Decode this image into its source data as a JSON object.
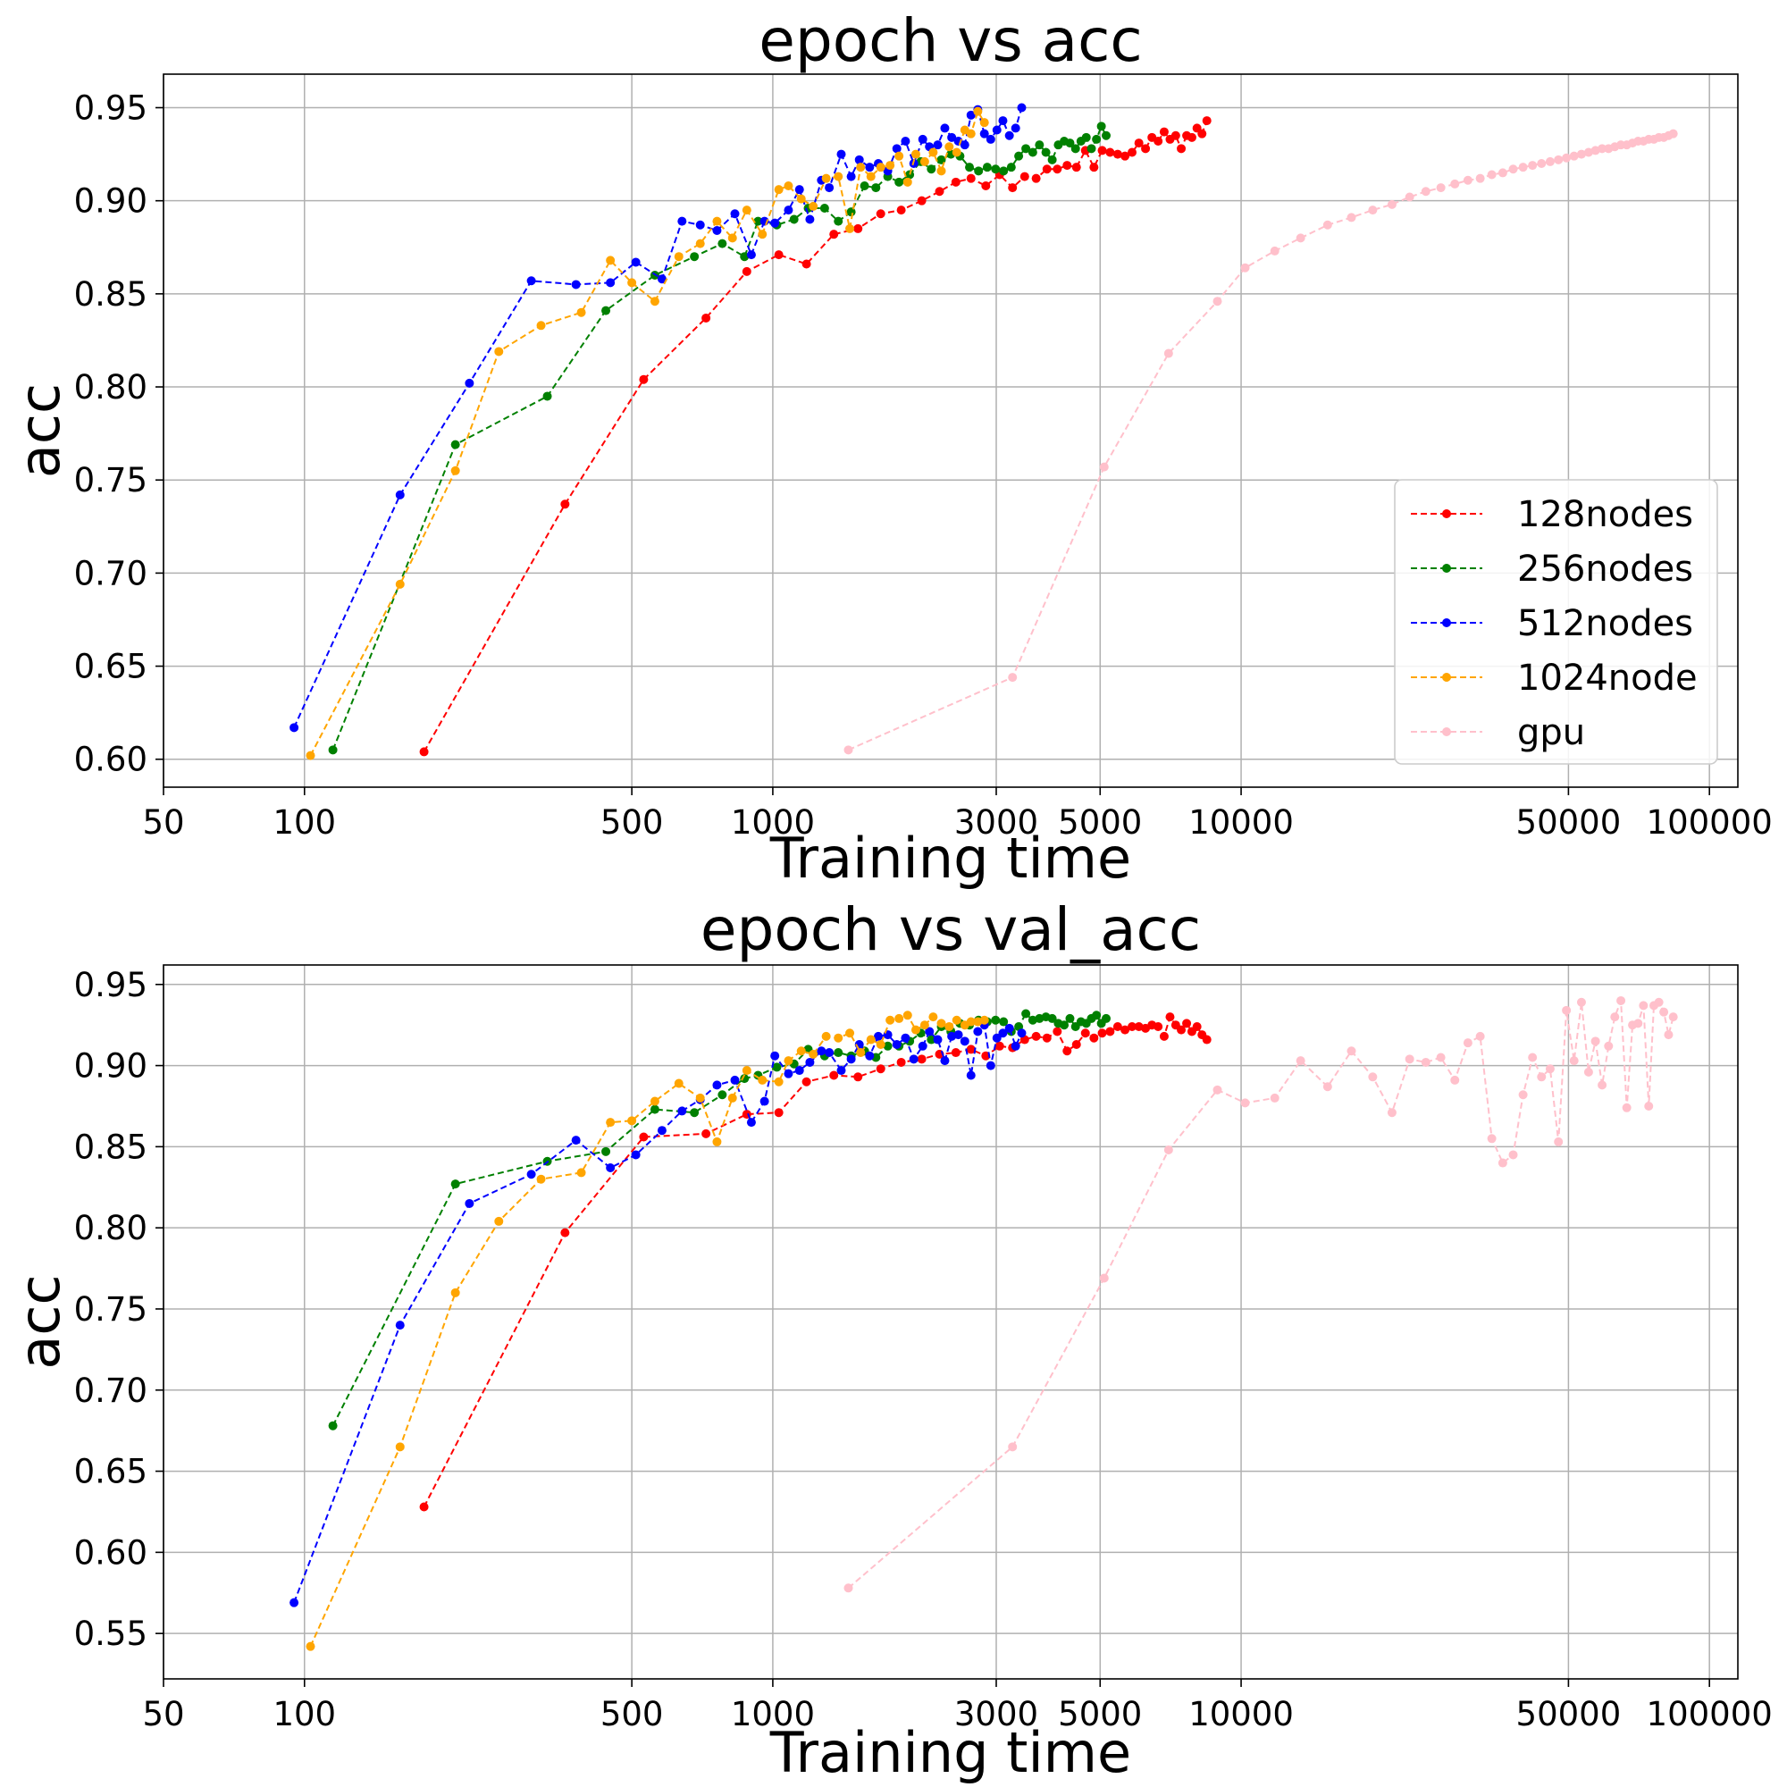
{
  "chart_data": [
    {
      "type": "line",
      "title": "epoch vs acc",
      "xlabel": "Training time",
      "ylabel": "acc",
      "x_scale": "log",
      "xlim": [
        50,
        115000
      ],
      "ylim": [
        0.585,
        0.968
      ],
      "xticks": [
        50,
        100,
        500,
        1000,
        3000,
        5000,
        10000,
        50000,
        100000
      ],
      "xtick_labels": [
        "50",
        "100",
        "500",
        "1000",
        "3000",
        "5000",
        "10000",
        "50000",
        "100000"
      ],
      "yticks": [
        0.6,
        0.65,
        0.7,
        0.75,
        0.8,
        0.85,
        0.9,
        0.95
      ],
      "ytick_labels": [
        "0.60",
        "0.65",
        "0.70",
        "0.75",
        "0.80",
        "0.85",
        "0.90",
        "0.95"
      ],
      "grid": true,
      "legend": "lower-right",
      "series": [
        {
          "name": "128nodes",
          "color": "#ff0000",
          "x": [
            180,
            360,
            530,
            720,
            880,
            1030,
            1180,
            1350,
            1520,
            1700,
            1880,
            2080,
            2270,
            2460,
            2650,
            2850,
            3050,
            3250,
            3450,
            3650,
            3850,
            4050,
            4250,
            4450,
            4650,
            4850,
            5050,
            5250,
            5450,
            5650,
            5850,
            6050,
            6250,
            6450,
            6650,
            6850,
            7050,
            7250,
            7450,
            7650,
            7850,
            8050,
            8250,
            8450
          ],
          "y": [
            0.604,
            0.737,
            0.804,
            0.837,
            0.862,
            0.871,
            0.866,
            0.882,
            0.885,
            0.893,
            0.895,
            0.9,
            0.905,
            0.91,
            0.912,
            0.908,
            0.914,
            0.907,
            0.913,
            0.912,
            0.917,
            0.917,
            0.919,
            0.918,
            0.927,
            0.918,
            0.927,
            0.926,
            0.925,
            0.924,
            0.926,
            0.931,
            0.928,
            0.934,
            0.932,
            0.937,
            0.933,
            0.935,
            0.928,
            0.935,
            0.934,
            0.939,
            0.936,
            0.943
          ]
        },
        {
          "name": "256nodes",
          "color": "#008000",
          "x": [
            115,
            210,
            330,
            440,
            560,
            680,
            780,
            870,
            930,
            1020,
            1110,
            1190,
            1290,
            1380,
            1470,
            1570,
            1660,
            1760,
            1860,
            1960,
            2070,
            2180,
            2290,
            2400,
            2510,
            2630,
            2750,
            2870,
            2990,
            3110,
            3230,
            3350,
            3470,
            3590,
            3710,
            3830,
            3950,
            4070,
            4190,
            4310,
            4430,
            4550,
            4670,
            4790,
            4910,
            5030,
            5150
          ],
          "y": [
            0.605,
            0.769,
            0.795,
            0.841,
            0.86,
            0.87,
            0.877,
            0.87,
            0.889,
            0.887,
            0.89,
            0.896,
            0.896,
            0.889,
            0.894,
            0.908,
            0.907,
            0.913,
            0.91,
            0.914,
            0.921,
            0.917,
            0.922,
            0.925,
            0.924,
            0.918,
            0.916,
            0.918,
            0.917,
            0.916,
            0.918,
            0.924,
            0.928,
            0.926,
            0.93,
            0.926,
            0.922,
            0.93,
            0.932,
            0.931,
            0.928,
            0.932,
            0.934,
            0.928,
            0.933,
            0.94,
            0.935
          ]
        },
        {
          "name": "512nodes",
          "color": "#0000ff",
          "x": [
            95,
            160,
            225,
            305,
            380,
            450,
            510,
            580,
            640,
            700,
            760,
            830,
            900,
            960,
            1010,
            1080,
            1140,
            1200,
            1270,
            1320,
            1400,
            1470,
            1530,
            1610,
            1680,
            1760,
            1840,
            1920,
            2000,
            2090,
            2160,
            2250,
            2330,
            2410,
            2490,
            2570,
            2650,
            2740,
            2830,
            2920,
            3010,
            3100,
            3200,
            3300,
            3400
          ],
          "y": [
            0.617,
            0.742,
            0.802,
            0.857,
            0.855,
            0.856,
            0.867,
            0.858,
            0.889,
            0.887,
            0.884,
            0.893,
            0.871,
            0.889,
            0.888,
            0.895,
            0.906,
            0.89,
            0.911,
            0.907,
            0.925,
            0.913,
            0.922,
            0.918,
            0.92,
            0.916,
            0.928,
            0.932,
            0.92,
            0.933,
            0.929,
            0.93,
            0.939,
            0.934,
            0.932,
            0.93,
            0.946,
            0.949,
            0.936,
            0.933,
            0.938,
            0.943,
            0.935,
            0.939,
            0.95
          ]
        },
        {
          "name": "1024node",
          "color": "#ffa500",
          "x": [
            103,
            160,
            210,
            260,
            320,
            390,
            450,
            500,
            560,
            630,
            700,
            760,
            820,
            880,
            950,
            1030,
            1080,
            1150,
            1220,
            1300,
            1380,
            1460,
            1540,
            1620,
            1700,
            1780,
            1860,
            1940,
            2020,
            2110,
            2200,
            2290,
            2380,
            2470,
            2570,
            2650,
            2740,
            2830
          ],
          "y": [
            0.602,
            0.694,
            0.755,
            0.819,
            0.833,
            0.84,
            0.868,
            0.856,
            0.846,
            0.87,
            0.877,
            0.889,
            0.88,
            0.895,
            0.882,
            0.906,
            0.908,
            0.901,
            0.897,
            0.912,
            0.913,
            0.885,
            0.918,
            0.913,
            0.918,
            0.919,
            0.924,
            0.91,
            0.925,
            0.921,
            0.926,
            0.916,
            0.929,
            0.926,
            0.938,
            0.936,
            0.948,
            0.942
          ]
        },
        {
          "name": "gpu",
          "color": "#ffc0cb",
          "x": [
            1450,
            3250,
            5100,
            7000,
            8900,
            10200,
            11800,
            13400,
            15300,
            17200,
            19100,
            21000,
            22900,
            24800,
            26700,
            28600,
            30500,
            32400,
            34300,
            36200,
            38100,
            40000,
            41900,
            43800,
            45700,
            47600,
            49500,
            51400,
            53300,
            55200,
            57100,
            59000,
            60900,
            62800,
            64700,
            66600,
            68500,
            70400,
            72300,
            74200,
            76100,
            78000,
            79900,
            81800,
            83700
          ],
          "y": [
            0.605,
            0.644,
            0.757,
            0.818,
            0.846,
            0.864,
            0.873,
            0.88,
            0.887,
            0.891,
            0.895,
            0.898,
            0.902,
            0.905,
            0.907,
            0.909,
            0.911,
            0.912,
            0.914,
            0.915,
            0.917,
            0.918,
            0.919,
            0.92,
            0.921,
            0.922,
            0.923,
            0.924,
            0.925,
            0.926,
            0.927,
            0.928,
            0.928,
            0.929,
            0.93,
            0.93,
            0.931,
            0.932,
            0.932,
            0.933,
            0.933,
            0.934,
            0.934,
            0.935,
            0.936
          ]
        }
      ]
    },
    {
      "type": "line",
      "title": "epoch vs val_acc",
      "xlabel": "Training time",
      "ylabel": "acc",
      "x_scale": "log",
      "xlim": [
        50,
        115000
      ],
      "ylim": [
        0.522,
        0.962
      ],
      "xticks": [
        50,
        100,
        500,
        1000,
        3000,
        5000,
        10000,
        50000,
        100000
      ],
      "xtick_labels": [
        "50",
        "100",
        "500",
        "1000",
        "3000",
        "5000",
        "10000",
        "50000",
        "100000"
      ],
      "yticks": [
        0.55,
        0.6,
        0.65,
        0.7,
        0.75,
        0.8,
        0.85,
        0.9,
        0.95
      ],
      "ytick_labels": [
        "0.55",
        "0.60",
        "0.65",
        "0.70",
        "0.75",
        "0.80",
        "0.85",
        "0.90",
        "0.95"
      ],
      "grid": true,
      "legend": "none",
      "series": [
        {
          "name": "128nodes",
          "color": "#ff0000",
          "x": [
            180,
            360,
            530,
            720,
            880,
            1030,
            1180,
            1350,
            1520,
            1700,
            1880,
            2080,
            2270,
            2460,
            2650,
            2850,
            3050,
            3250,
            3450,
            3650,
            3850,
            4050,
            4250,
            4450,
            4650,
            4850,
            5050,
            5250,
            5450,
            5650,
            5850,
            6050,
            6250,
            6450,
            6650,
            6850,
            7050,
            7250,
            7450,
            7650,
            7850,
            8050,
            8250,
            8450
          ],
          "y": [
            0.628,
            0.797,
            0.856,
            0.858,
            0.87,
            0.871,
            0.89,
            0.894,
            0.893,
            0.898,
            0.902,
            0.904,
            0.907,
            0.908,
            0.91,
            0.906,
            0.912,
            0.911,
            0.916,
            0.918,
            0.917,
            0.921,
            0.909,
            0.913,
            0.92,
            0.917,
            0.92,
            0.921,
            0.924,
            0.922,
            0.924,
            0.924,
            0.923,
            0.925,
            0.924,
            0.918,
            0.93,
            0.925,
            0.922,
            0.926,
            0.921,
            0.924,
            0.919,
            0.916
          ]
        },
        {
          "name": "256nodes",
          "color": "#008000",
          "x": [
            115,
            210,
            330,
            440,
            560,
            680,
            780,
            870,
            930,
            1020,
            1110,
            1190,
            1290,
            1380,
            1470,
            1570,
            1660,
            1760,
            1860,
            1960,
            2070,
            2180,
            2290,
            2400,
            2510,
            2630,
            2750,
            2870,
            2990,
            3110,
            3230,
            3350,
            3470,
            3590,
            3710,
            3830,
            3950,
            4070,
            4190,
            4310,
            4430,
            4550,
            4670,
            4790,
            4910,
            5030,
            5150
          ],
          "y": [
            0.678,
            0.827,
            0.841,
            0.847,
            0.873,
            0.871,
            0.882,
            0.892,
            0.894,
            0.899,
            0.901,
            0.91,
            0.906,
            0.908,
            0.906,
            0.909,
            0.905,
            0.912,
            0.912,
            0.915,
            0.92,
            0.916,
            0.924,
            0.921,
            0.926,
            0.925,
            0.928,
            0.927,
            0.928,
            0.927,
            0.921,
            0.924,
            0.932,
            0.928,
            0.929,
            0.93,
            0.929,
            0.926,
            0.925,
            0.929,
            0.924,
            0.927,
            0.926,
            0.929,
            0.931,
            0.926,
            0.929
          ]
        },
        {
          "name": "512nodes",
          "color": "#0000ff",
          "x": [
            95,
            160,
            225,
            305,
            380,
            450,
            510,
            580,
            640,
            700,
            760,
            830,
            900,
            960,
            1010,
            1080,
            1140,
            1200,
            1270,
            1320,
            1400,
            1470,
            1530,
            1610,
            1680,
            1760,
            1840,
            1920,
            2000,
            2090,
            2160,
            2250,
            2330,
            2410,
            2490,
            2570,
            2650,
            2740,
            2830,
            2920,
            3010,
            3100,
            3200,
            3300,
            3400
          ],
          "y": [
            0.569,
            0.74,
            0.815,
            0.833,
            0.854,
            0.837,
            0.845,
            0.86,
            0.872,
            0.879,
            0.888,
            0.891,
            0.865,
            0.878,
            0.906,
            0.895,
            0.897,
            0.902,
            0.909,
            0.908,
            0.897,
            0.904,
            0.913,
            0.906,
            0.918,
            0.919,
            0.913,
            0.917,
            0.904,
            0.912,
            0.921,
            0.916,
            0.903,
            0.918,
            0.919,
            0.915,
            0.894,
            0.921,
            0.925,
            0.9,
            0.917,
            0.92,
            0.923,
            0.912,
            0.92
          ]
        },
        {
          "name": "1024node",
          "color": "#ffa500",
          "x": [
            103,
            160,
            210,
            260,
            320,
            390,
            450,
            500,
            560,
            630,
            700,
            760,
            820,
            880,
            950,
            1030,
            1080,
            1150,
            1220,
            1300,
            1380,
            1460,
            1540,
            1620,
            1700,
            1780,
            1860,
            1940,
            2020,
            2110,
            2200,
            2290,
            2380,
            2470,
            2570,
            2650,
            2740,
            2830
          ],
          "y": [
            0.542,
            0.665,
            0.76,
            0.804,
            0.83,
            0.834,
            0.865,
            0.866,
            0.878,
            0.889,
            0.88,
            0.853,
            0.88,
            0.897,
            0.891,
            0.89,
            0.903,
            0.909,
            0.907,
            0.918,
            0.917,
            0.92,
            0.908,
            0.916,
            0.913,
            0.928,
            0.929,
            0.931,
            0.922,
            0.925,
            0.93,
            0.926,
            0.924,
            0.928,
            0.925,
            0.927,
            0.927,
            0.928
          ]
        },
        {
          "name": "gpu",
          "color": "#ffc0cb",
          "x": [
            1450,
            3250,
            5100,
            7000,
            8900,
            10200,
            11800,
            13400,
            15300,
            17200,
            19100,
            21000,
            22900,
            24800,
            26700,
            28600,
            30500,
            32400,
            34300,
            36200,
            38100,
            40000,
            41900,
            43800,
            45700,
            47600,
            49500,
            51400,
            53300,
            55200,
            57100,
            59000,
            60900,
            62800,
            64700,
            66600,
            68500,
            70400,
            72300,
            74200,
            76100,
            78000,
            79900,
            81800,
            83700
          ],
          "y": [
            0.578,
            0.665,
            0.769,
            0.848,
            0.885,
            0.877,
            0.88,
            0.903,
            0.887,
            0.909,
            0.893,
            0.871,
            0.904,
            0.902,
            0.905,
            0.891,
            0.914,
            0.918,
            0.855,
            0.84,
            0.845,
            0.882,
            0.905,
            0.893,
            0.898,
            0.853,
            0.934,
            0.903,
            0.939,
            0.896,
            0.915,
            0.888,
            0.912,
            0.93,
            0.94,
            0.874,
            0.925,
            0.926,
            0.937,
            0.875,
            0.937,
            0.939,
            0.933,
            0.919,
            0.93
          ]
        }
      ]
    }
  ]
}
